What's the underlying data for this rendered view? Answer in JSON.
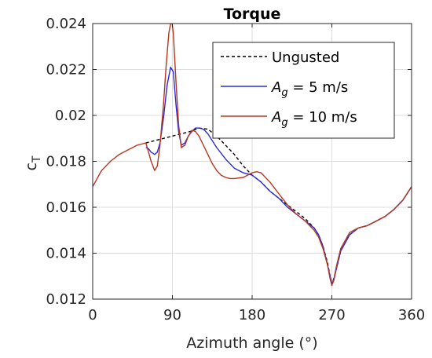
{
  "chart_data": {
    "type": "line",
    "title": "Torque",
    "xlabel": "Azimuth angle (°)",
    "ylabel": "c",
    "ylabel_sub": "T",
    "xlim": [
      0,
      360
    ],
    "ylim": [
      0.012,
      0.024
    ],
    "xticks": [
      0,
      90,
      180,
      270,
      360
    ],
    "xtick_labels": [
      "0",
      "90",
      "180",
      "270",
      "360"
    ],
    "yticks": [
      0.012,
      0.014,
      0.016,
      0.018,
      0.02,
      0.022,
      0.024
    ],
    "ytick_labels": [
      "0.012",
      "0.014",
      "0.016",
      "0.018",
      "0.02",
      "0.022",
      "0.024"
    ],
    "grid": true,
    "legend_position": "top-right",
    "series": [
      {
        "name": "Ungusted",
        "legend_main": "Ungusted",
        "legend_sub": "",
        "legend_rest": "",
        "color": "#000000",
        "dash": "4,3",
        "x": [
          60,
          80,
          100,
          110,
          120,
          130,
          140,
          150,
          160,
          170,
          180,
          190,
          200,
          210,
          220,
          230,
          240,
          250,
          255,
          260,
          265,
          270,
          275,
          280,
          290,
          300,
          310,
          320,
          330,
          340,
          350,
          360
        ],
        "y": [
          0.0188,
          0.019,
          0.0192,
          0.0193,
          0.01945,
          0.0194,
          0.0191,
          0.0187,
          0.0183,
          0.0178,
          0.0174,
          0.0171,
          0.0167,
          0.0164,
          0.0161,
          0.0158,
          0.0155,
          0.0151,
          0.0148,
          0.0143,
          0.0136,
          0.0126,
          0.0133,
          0.0141,
          0.0148,
          0.0151,
          0.0152,
          0.0154,
          0.0156,
          0.0159,
          0.0163,
          0.0169
        ]
      },
      {
        "name": "A_g = 5 m/s",
        "legend_main": "A",
        "legend_sub": "g",
        "legend_rest": " = 5 m/s",
        "color": "#2b2bd6",
        "dash": "",
        "x": [
          60,
          63,
          66,
          70,
          73,
          76,
          80,
          84,
          88,
          91,
          94,
          97,
          100,
          104,
          108,
          112,
          116,
          120,
          125,
          130,
          135,
          140,
          150,
          160,
          170,
          180,
          190,
          200,
          210,
          220,
          230,
          240,
          250,
          255,
          260,
          265,
          268,
          270,
          272,
          275,
          280,
          290,
          300,
          310,
          320,
          330,
          340,
          350,
          360
        ],
        "y": [
          0.0186,
          0.01855,
          0.0184,
          0.0183,
          0.0184,
          0.0188,
          0.0199,
          0.0213,
          0.0221,
          0.0219,
          0.0205,
          0.0193,
          0.0187,
          0.0188,
          0.0191,
          0.0193,
          0.01945,
          0.01945,
          0.0194,
          0.0192,
          0.0189,
          0.0186,
          0.0181,
          0.0177,
          0.0175,
          0.0174,
          0.0171,
          0.0167,
          0.0164,
          0.016,
          0.0157,
          0.0154,
          0.0151,
          0.0148,
          0.0143,
          0.0135,
          0.013,
          0.0127,
          0.0128,
          0.0133,
          0.0141,
          0.0148,
          0.0151,
          0.0152,
          0.0154,
          0.0156,
          0.0159,
          0.0163,
          0.0169
        ]
      },
      {
        "name": "A_g = 10 m/s",
        "legend_main": "A",
        "legend_sub": "g",
        "legend_rest": " = 10 m/s",
        "color": "#b5361f",
        "dash": "",
        "x": [
          0,
          10,
          20,
          30,
          40,
          50,
          60,
          63,
          66,
          70,
          73,
          76,
          80,
          83,
          86,
          89,
          91,
          94,
          97,
          100,
          104,
          108,
          112,
          116,
          120,
          125,
          130,
          135,
          140,
          145,
          150,
          155,
          160,
          170,
          180,
          185,
          190,
          200,
          210,
          220,
          230,
          240,
          250,
          255,
          260,
          265,
          268,
          270,
          272,
          275,
          280,
          290,
          300,
          310,
          320,
          330,
          340,
          350,
          360
        ],
        "y": [
          0.0169,
          0.0176,
          0.018,
          0.0183,
          0.0185,
          0.0187,
          0.0188,
          0.0184,
          0.018,
          0.0176,
          0.0178,
          0.0187,
          0.0205,
          0.0222,
          0.0236,
          0.0242,
          0.0236,
          0.0215,
          0.0196,
          0.0186,
          0.0187,
          0.0191,
          0.01935,
          0.0193,
          0.0191,
          0.0187,
          0.0183,
          0.0179,
          0.0176,
          0.0174,
          0.0173,
          0.01725,
          0.01725,
          0.0173,
          0.0175,
          0.01755,
          0.0175,
          0.0171,
          0.0166,
          0.0161,
          0.0157,
          0.0154,
          0.015,
          0.0147,
          0.0142,
          0.0135,
          0.0129,
          0.0126,
          0.0128,
          0.0134,
          0.0142,
          0.0149,
          0.0151,
          0.0152,
          0.0154,
          0.0156,
          0.0159,
          0.0163,
          0.0169
        ]
      }
    ]
  }
}
